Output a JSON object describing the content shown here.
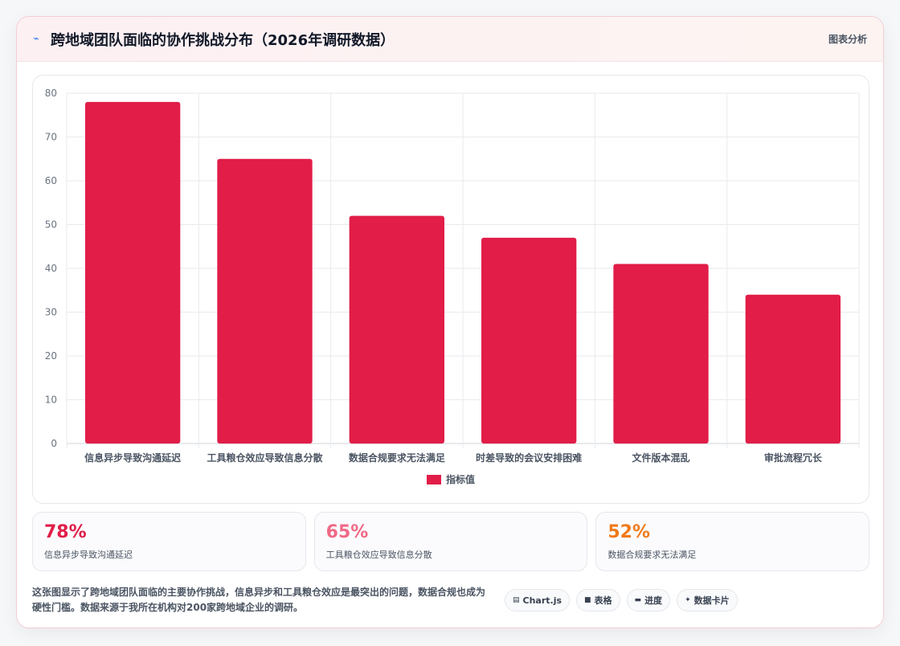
{
  "header": {
    "title": "跨地域团队面临的协作挑战分布（2026年调研数据）",
    "tag": "图表分析",
    "icon": "lightning-icon"
  },
  "chart_data": {
    "type": "bar",
    "categories": [
      "信息异步导致沟通延迟",
      "工具粮仓效应导致信息分散",
      "数据合规要求无法满足",
      "时差导致的会议安排困难",
      "文件版本混乱",
      "审批流程冗长"
    ],
    "series": [
      {
        "name": "指标值",
        "values": [
          78,
          65,
          52,
          47,
          41,
          34
        ]
      }
    ],
    "ylim": [
      0,
      80
    ],
    "yticks": [
      0,
      10,
      20,
      30,
      40,
      50,
      60,
      70,
      80
    ],
    "grid": true,
    "legend": "bottom",
    "bar_color": "#e11d48"
  },
  "stats": [
    {
      "value": "78%",
      "label": "信息异步导致沟通延迟",
      "color": "#e11d48"
    },
    {
      "value": "65%",
      "label": "工具粮仓效应导致信息分散",
      "color": "#f06a86"
    },
    {
      "value": "52%",
      "label": "数据合规要求无法满足",
      "color": "#f07a1a"
    }
  ],
  "footer": {
    "description": "这张图显示了跨地域团队面临的主要协作挑战，信息异步和工具粮仓效应是最突出的问题，数据合规也成为硬性门槛。数据来源于我所在机构对200家跨地域企业的调研。",
    "pills": [
      {
        "label": "Chart.js",
        "icon": "chart-icon"
      },
      {
        "label": "表格",
        "icon": "table-icon"
      },
      {
        "label": "进度",
        "icon": "progress-icon"
      },
      {
        "label": "数据卡片",
        "icon": "sparkle-icon"
      }
    ]
  }
}
